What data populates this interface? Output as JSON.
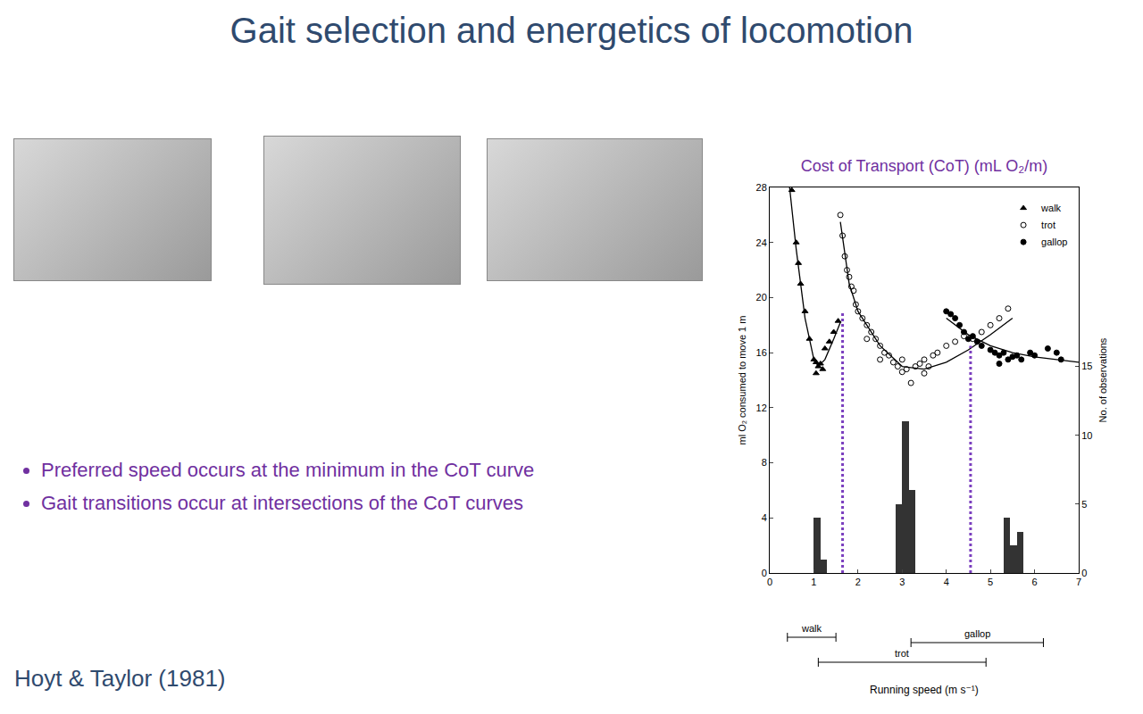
{
  "slide": {
    "title": "Gait selection and energetics of locomotion",
    "bullets": [
      "Preferred speed occurs at the minimum in the CoT curve",
      "Gait transitions occur at intersections of the CoT curves"
    ],
    "citation": "Hoyt & Taylor (1981)"
  },
  "chart_data": {
    "type": "scatter",
    "title": "Cost of Transport (CoT) (mL O₂/m)",
    "x_label": "Running speed (m s⁻¹)",
    "y_label": "ml O₂ consumed to move 1 m",
    "y2_label": "No. of observations",
    "xlim": [
      0,
      7
    ],
    "xticks": [
      0,
      1,
      2,
      3,
      4,
      5,
      6,
      7
    ],
    "ylim": [
      0,
      28
    ],
    "yticks": [
      0,
      4,
      8,
      12,
      16,
      20,
      24,
      28
    ],
    "y2lim": [
      0,
      28
    ],
    "y2ticks": [
      0,
      5,
      10,
      15
    ],
    "grid": false,
    "legend": "top right",
    "series": [
      {
        "name": "walk",
        "type": "scatter",
        "marker": "triangle",
        "color": "#000000",
        "x": [
          0.5,
          0.6,
          0.65,
          0.7,
          0.8,
          0.9,
          1.0,
          1.05,
          1.1,
          1.05,
          1.15,
          1.2,
          1.25,
          1.35,
          1.45,
          1.55
        ],
        "values": [
          27.8,
          24,
          22.5,
          21,
          19,
          17,
          15.5,
          15.3,
          15,
          14.5,
          15.2,
          14.8,
          16.3,
          16.8,
          17.5,
          18.3
        ]
      },
      {
        "name": "trot",
        "type": "scatter",
        "marker": "circle-open",
        "color": "#000000",
        "x": [
          1.6,
          1.65,
          1.7,
          1.75,
          1.8,
          1.85,
          1.9,
          1.95,
          2.0,
          2.1,
          2.2,
          2.3,
          2.4,
          2.5,
          2.6,
          2.7,
          2.8,
          2.9,
          3.0,
          3.1,
          3.2,
          3.3,
          3.4,
          3.5,
          3.6,
          3.7,
          3.8,
          4.0,
          4.2,
          4.4,
          4.6,
          4.8,
          5.0,
          5.2,
          5.4,
          2.2,
          2.5,
          3.0,
          3.5
        ],
        "values": [
          26,
          24.5,
          23,
          22,
          21.5,
          20.8,
          20.5,
          19.5,
          19,
          18.5,
          18,
          17.5,
          17,
          16.5,
          16,
          15.8,
          15.3,
          15,
          14.6,
          14.8,
          13.8,
          15,
          15.2,
          15.5,
          15,
          15.8,
          16,
          16.5,
          16.8,
          17.2,
          17,
          17.5,
          18,
          18.5,
          19.2,
          17,
          15.5,
          15.5,
          14.5
        ]
      },
      {
        "name": "gallop",
        "type": "scatter",
        "marker": "circle",
        "color": "#000000",
        "x": [
          4.0,
          4.1,
          4.2,
          4.3,
          4.4,
          4.5,
          4.6,
          4.7,
          4.8,
          5.0,
          5.1,
          5.2,
          5.3,
          5.4,
          5.5,
          5.6,
          5.7,
          5.9,
          6.0,
          6.3,
          6.5,
          6.6,
          5.2
        ],
        "values": [
          19,
          18.8,
          18.5,
          18,
          17.5,
          17,
          17.2,
          16.8,
          16.5,
          16.2,
          16,
          15.8,
          16,
          15.5,
          15.7,
          15.8,
          15.5,
          16,
          15.8,
          16.3,
          16,
          15.5,
          15.2
        ]
      },
      {
        "type": "line",
        "line_style": "solid",
        "color": "#000000",
        "x": [
          0.45,
          0.6,
          0.8,
          1.0,
          1.1,
          1.25,
          1.45,
          1.6
        ],
        "values": [
          28,
          23.5,
          18.5,
          15.5,
          15,
          15.5,
          17,
          18.2
        ]
      },
      {
        "type": "line",
        "line_style": "solid",
        "color": "#000000",
        "x": [
          1.6,
          1.8,
          2.0,
          2.5,
          3.0,
          3.5,
          4.0,
          4.5,
          5.0,
          5.5
        ],
        "values": [
          25.5,
          21,
          19,
          16.5,
          15,
          14.8,
          15.3,
          16.2,
          17.3,
          18.5
        ]
      },
      {
        "type": "line",
        "line_style": "solid",
        "color": "#000000",
        "x": [
          4.0,
          4.5,
          5.0,
          5.5,
          6.0,
          6.5,
          7.0
        ],
        "values": [
          18.5,
          17.3,
          16.5,
          16,
          15.7,
          15.5,
          15.3
        ]
      },
      {
        "type": "line",
        "line_style": "dot",
        "color": "#7b3fbf",
        "x": [
          1.65,
          1.65
        ],
        "values": [
          0,
          19
        ]
      },
      {
        "type": "line",
        "line_style": "dot",
        "color": "#7b3fbf",
        "x": [
          4.55,
          4.55
        ],
        "values": [
          0,
          16.5
        ]
      }
    ],
    "histogram": {
      "axis": "y2",
      "color": "#333333",
      "bins": [
        1.0,
        1.15,
        1.3,
        2.85,
        3.0,
        3.15,
        3.3,
        5.3,
        5.45,
        5.6,
        5.75
      ],
      "counts": [
        4,
        1,
        0,
        5,
        11,
        6,
        0,
        4,
        2,
        3
      ]
    },
    "gait_ranges": [
      {
        "label": "walk",
        "x": [
          0.4,
          1.5
        ]
      },
      {
        "label": "trot",
        "x": [
          1.1,
          4.9
        ]
      },
      {
        "label": "gallop",
        "x": [
          3.2,
          6.2
        ]
      }
    ]
  }
}
